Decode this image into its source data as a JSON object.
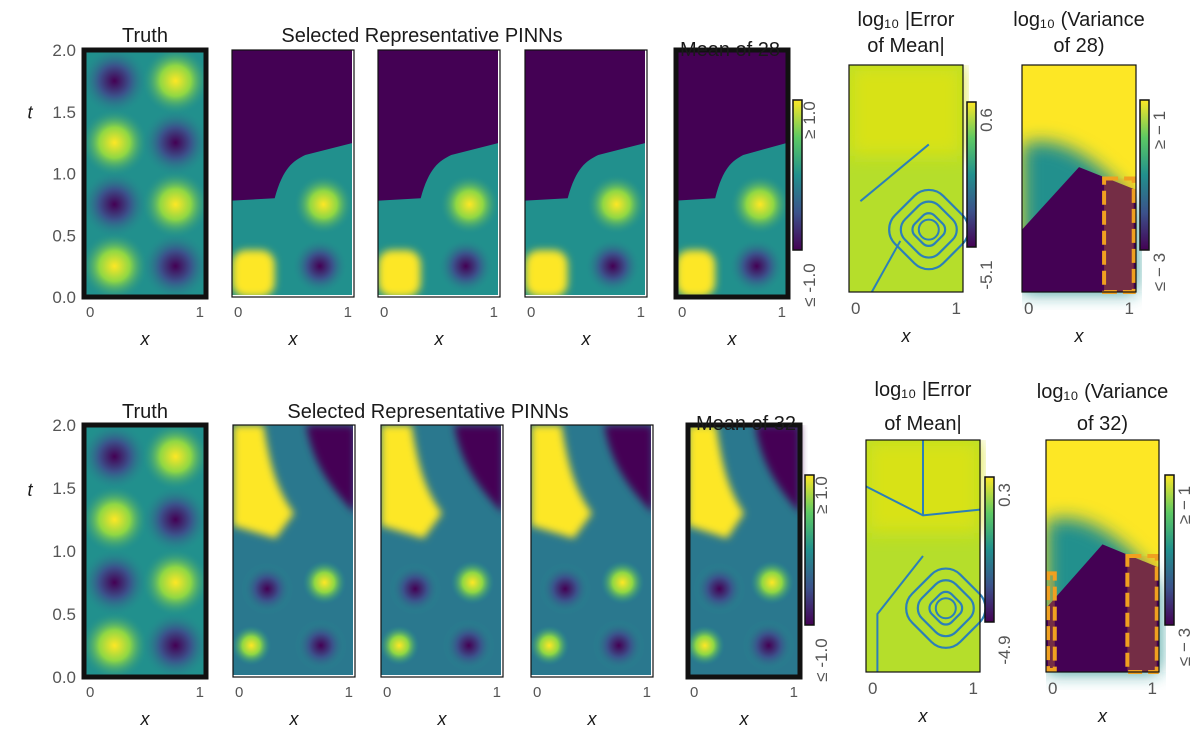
{
  "figure": {
    "rows": [
      {
        "truth_title": "Truth",
        "group_title": "Selected Representative PINNs",
        "mean_title": "Mean of 28",
        "error_title": [
          "log₁₀ |Error",
          "of Mean|"
        ],
        "variance_title": [
          "log₁₀ (Variance",
          "of 28)"
        ],
        "ylabel": "t",
        "xlabel": "x",
        "y_ticks": [
          "2.0",
          "1.5",
          "1.0",
          "0.5",
          "0.0"
        ],
        "x_ticks": [
          "0",
          "1"
        ],
        "colorbar_main": {
          "top": "≥ 1.0",
          "bottom": "≤ -1.0"
        },
        "colorbar_error": {
          "top": "0.6",
          "bottom": "-5.1"
        },
        "colorbar_variance": {
          "top": "≥ − 1",
          "bottom": "≤ − 3"
        }
      },
      {
        "truth_title": "Truth",
        "group_title": "Selected Representative PINNs",
        "mean_title": "Mean of 32",
        "error_title": [
          "log₁₀ |Error",
          "of Mean|"
        ],
        "variance_title": [
          "log₁₀ (Variance",
          "of 32)"
        ],
        "ylabel": "t",
        "xlabel": "x",
        "y_ticks": [
          "2.0",
          "1.5",
          "1.0",
          "0.5",
          "0.0"
        ],
        "x_ticks": [
          "0",
          "1"
        ],
        "colorbar_main": {
          "top": "≥ 1.0",
          "bottom": "≤ -1.0"
        },
        "colorbar_error": {
          "top": "0.3",
          "bottom": "-4.9"
        },
        "colorbar_variance": {
          "top": "≥ − 1",
          "bottom": "≤ − 3"
        }
      }
    ]
  },
  "chart_data": [
    {
      "type": "heatmap",
      "row": 1,
      "panels": [
        "Truth",
        "PINN 1",
        "PINN 2",
        "PINN 3",
        "Mean of 28",
        "log10 |Error of Mean|",
        "log10 (Variance of 28)"
      ],
      "x_range": [
        0,
        1
      ],
      "t_range": [
        0,
        2
      ],
      "value_range_main": [
        -1.0,
        1.0
      ],
      "value_range_error": [
        -5.1,
        0.6
      ],
      "value_range_variance": [
        -3,
        -1
      ],
      "colormap": "viridis",
      "truth_extrema": [
        {
          "x": 0.25,
          "t": 0.25,
          "value": 1
        },
        {
          "x": 0.75,
          "t": 0.25,
          "value": -1
        },
        {
          "x": 0.25,
          "t": 0.75,
          "value": -1
        },
        {
          "x": 0.75,
          "t": 0.75,
          "value": 1
        },
        {
          "x": 0.25,
          "t": 1.25,
          "value": 1
        },
        {
          "x": 0.75,
          "t": 1.25,
          "value": -1
        },
        {
          "x": 0.25,
          "t": 1.75,
          "value": -1
        },
        {
          "x": 0.75,
          "t": 1.75,
          "value": 1
        }
      ],
      "highlight_color": "#f0a020"
    },
    {
      "type": "heatmap",
      "row": 2,
      "panels": [
        "Truth",
        "PINN 1",
        "PINN 2",
        "PINN 3",
        "Mean of 32",
        "log10 |Error of Mean|",
        "log10 (Variance of 32)"
      ],
      "x_range": [
        0,
        1
      ],
      "t_range": [
        0,
        2
      ],
      "value_range_main": [
        -1.0,
        1.0
      ],
      "value_range_error": [
        -4.9,
        0.3
      ],
      "value_range_variance": [
        -3,
        -1
      ],
      "colormap": "viridis",
      "truth_extrema": [
        {
          "x": 0.25,
          "t": 0.25,
          "value": 1
        },
        {
          "x": 0.75,
          "t": 0.25,
          "value": -1
        },
        {
          "x": 0.25,
          "t": 0.75,
          "value": -1
        },
        {
          "x": 0.75,
          "t": 0.75,
          "value": 1
        },
        {
          "x": 0.25,
          "t": 1.25,
          "value": 1
        },
        {
          "x": 0.75,
          "t": 1.25,
          "value": -1
        },
        {
          "x": 0.25,
          "t": 1.75,
          "value": -1
        },
        {
          "x": 0.75,
          "t": 1.75,
          "value": 1
        }
      ],
      "highlight_color": "#f0a020"
    }
  ]
}
